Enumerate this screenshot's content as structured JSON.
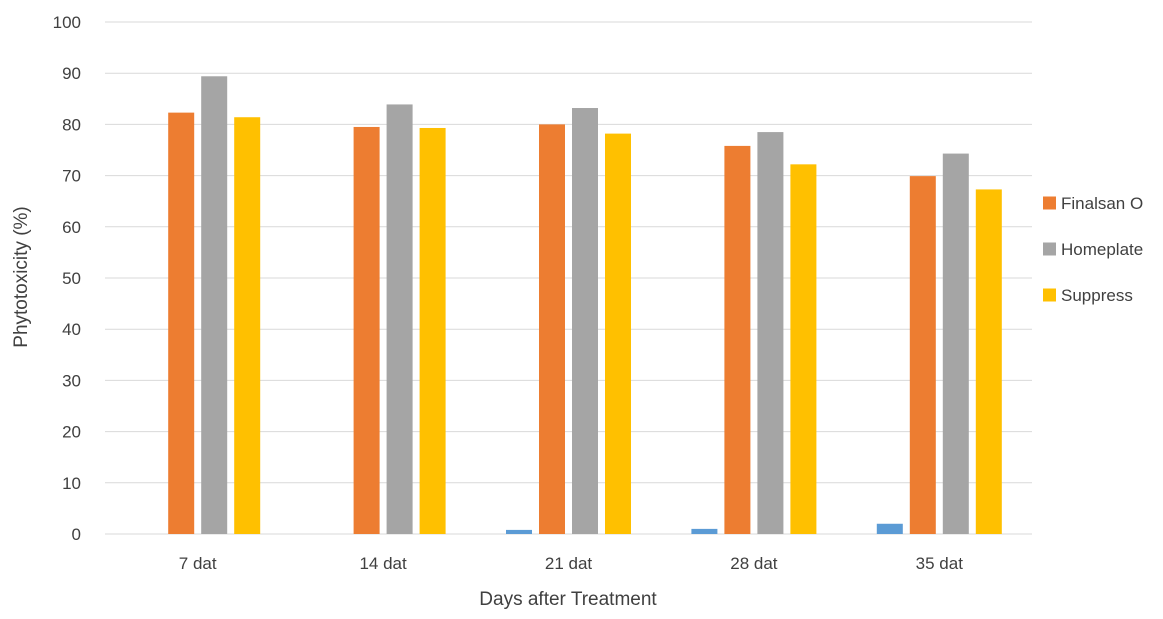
{
  "chart_data": {
    "type": "bar",
    "title": "",
    "xlabel": "Days after Treatment",
    "ylabel": "Phytotoxicity (%)",
    "ylim": [
      0,
      100
    ],
    "ytick_step": 10,
    "grid": true,
    "legend_position": "right",
    "categories": [
      "7 dat",
      "14 dat",
      "21 dat",
      "28 dat",
      "35 dat"
    ],
    "series": [
      {
        "values": [
          0,
          0,
          0.8,
          1.0,
          2.0
        ],
        "color": "#5b9bd5",
        "in_legend": false
      },
      {
        "name": "Finalsan O",
        "values": [
          82.3,
          79.5,
          80.0,
          75.8,
          69.9
        ],
        "color": "#ed7d31",
        "in_legend": true
      },
      {
        "name": "Homeplate",
        "values": [
          89.4,
          83.9,
          83.2,
          78.5,
          74.3
        ],
        "color": "#a5a5a5",
        "in_legend": true
      },
      {
        "name": "Suppress",
        "values": [
          81.4,
          79.3,
          78.2,
          72.2,
          67.3
        ],
        "color": "#ffc000",
        "in_legend": true
      }
    ],
    "colors": {
      "gridline": "#d9d9d9",
      "text": "#404040"
    }
  }
}
